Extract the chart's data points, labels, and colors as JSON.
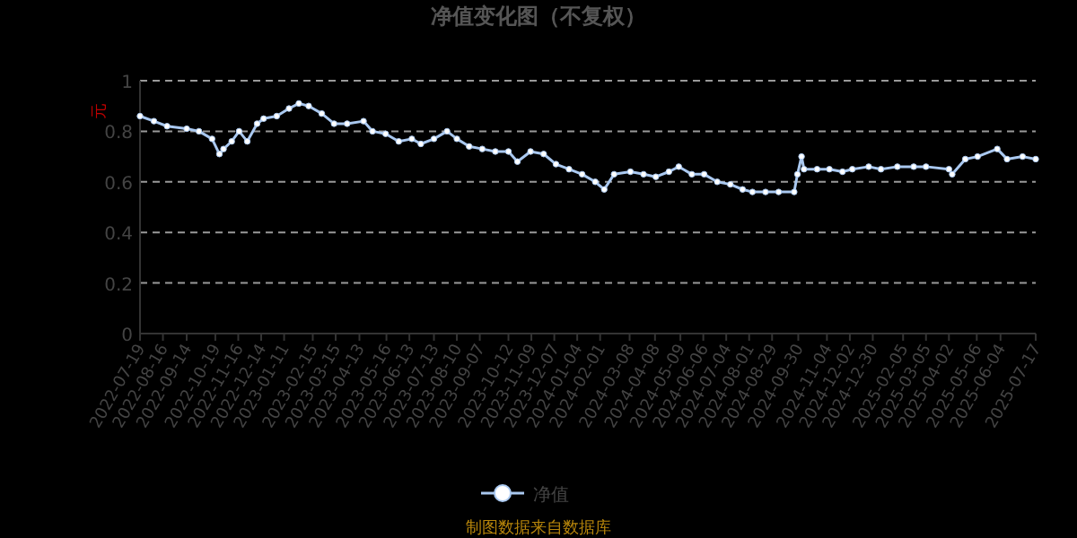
{
  "chart_data": {
    "type": "line",
    "title": "净值变化图（不复权）",
    "ylabel": "元",
    "annotations": [
      "制图数据来自数据库"
    ],
    "x": [
      "2022-07-19",
      "2022-08-05",
      "2022-08-21",
      "2022-09-14",
      "2022-09-29",
      "2022-10-15",
      "2022-10-24",
      "2022-10-29",
      "2022-11-08",
      "2022-11-17",
      "2022-11-27",
      "2022-12-09",
      "2022-12-17",
      "2023-01-02",
      "2023-01-17",
      "2023-01-29",
      "2023-02-10",
      "2023-02-26",
      "2023-03-13",
      "2023-03-29",
      "2023-04-18",
      "2023-04-29",
      "2023-05-15",
      "2023-05-31",
      "2023-06-16",
      "2023-06-27",
      "2023-07-13",
      "2023-07-29",
      "2023-08-10",
      "2023-08-25",
      "2023-09-10",
      "2023-09-26",
      "2023-10-12",
      "2023-10-23",
      "2023-11-08",
      "2023-11-24",
      "2023-12-09",
      "2023-12-25",
      "2024-01-10",
      "2024-01-26",
      "2024-02-06",
      "2024-02-18",
      "2024-03-09",
      "2024-03-25",
      "2024-04-09",
      "2024-04-25",
      "2024-05-07",
      "2024-05-23",
      "2024-06-07",
      "2024-06-23",
      "2024-07-09",
      "2024-07-24",
      "2024-08-05",
      "2024-08-21",
      "2024-09-06",
      "2024-09-25",
      "2024-09-29",
      "2024-10-04",
      "2024-10-07",
      "2024-10-23",
      "2024-11-07",
      "2024-11-23",
      "2024-12-05",
      "2024-12-25",
      "2025-01-09",
      "2025-01-29",
      "2025-02-18",
      "2025-03-05",
      "2025-04-02",
      "2025-04-06",
      "2025-04-22",
      "2025-05-07",
      "2025-05-31",
      "2025-06-12",
      "2025-07-01",
      "2025-07-17"
    ],
    "series": [
      {
        "name": "净值",
        "color": "#a9c8f0",
        "values": [
          0.86,
          0.84,
          0.82,
          0.81,
          0.8,
          0.77,
          0.71,
          0.73,
          0.76,
          0.8,
          0.76,
          0.83,
          0.85,
          0.86,
          0.89,
          0.91,
          0.9,
          0.87,
          0.83,
          0.83,
          0.84,
          0.8,
          0.79,
          0.76,
          0.77,
          0.75,
          0.77,
          0.8,
          0.77,
          0.74,
          0.73,
          0.72,
          0.72,
          0.68,
          0.72,
          0.71,
          0.67,
          0.65,
          0.63,
          0.6,
          0.57,
          0.63,
          0.64,
          0.63,
          0.62,
          0.64,
          0.66,
          0.63,
          0.63,
          0.6,
          0.59,
          0.57,
          0.56,
          0.56,
          0.56,
          0.56,
          0.63,
          0.7,
          0.65,
          0.65,
          0.65,
          0.64,
          0.65,
          0.66,
          0.65,
          0.66,
          0.66,
          0.66,
          0.65,
          0.63,
          0.69,
          0.7,
          0.73,
          0.69,
          0.7,
          0.69
        ]
      }
    ],
    "xlim": [
      "2022-07-19",
      "2025-07-17"
    ],
    "xticks": [
      "2022-07-19",
      "2022-08-16",
      "2022-09-14",
      "2022-10-19",
      "2022-11-16",
      "2022-12-14",
      "2023-01-11",
      "2023-02-15",
      "2023-03-15",
      "2023-04-13",
      "2023-05-16",
      "2023-06-13",
      "2023-07-13",
      "2023-08-10",
      "2023-09-07",
      "2023-10-12",
      "2023-11-09",
      "2023-12-07",
      "2024-01-04",
      "2024-02-01",
      "2024-03-08",
      "2024-04-08",
      "2024-05-09",
      "2024-06-06",
      "2024-07-04",
      "2024-08-01",
      "2024-08-29",
      "2024-09-30",
      "2024-11-04",
      "2024-12-02",
      "2024-12-30",
      "2025-02-05",
      "2025-03-05",
      "2025-04-02",
      "2025-05-06",
      "2025-06-04",
      "2025-07-17"
    ],
    "ylim": [
      0,
      1
    ],
    "yticks": [
      0,
      0.2,
      0.4,
      0.6,
      0.8,
      1
    ],
    "grid": "y",
    "legend": "bottom",
    "marker": "circle",
    "line_style": "solid"
  }
}
